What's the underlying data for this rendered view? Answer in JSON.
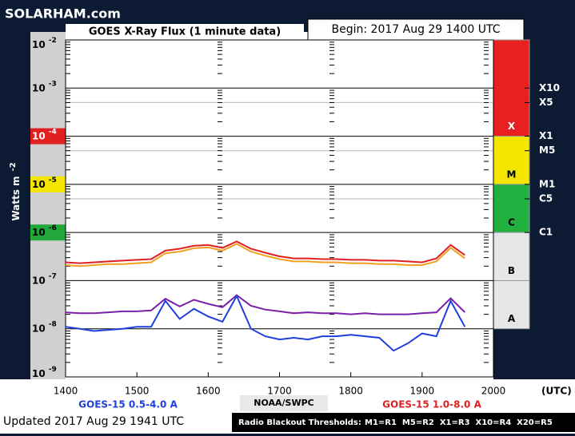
{
  "chart_data": {
    "type": "line",
    "site": "SOLARHAM.com",
    "title": "GOES X-Ray Flux (1 minute data)",
    "begin": "Begin: 2017 Aug 29 1400 UTC",
    "ylabel": "Watts m",
    "ylabel_exp": "-2",
    "x_unit": "(UTC)",
    "credit": "NOAA/SWPC",
    "updated": "Updated 2017 Aug 29 1941 UTC",
    "thresholds_title": "Radio Blackout Thresholds:",
    "thresholds_text": "M1=R1  M5=R2  X1=R3  X10=R4  X20=R5",
    "ylog": true,
    "ylim": [
      1e-09,
      0.01
    ],
    "yticks": [
      {
        "value": 0.01,
        "label": "10",
        "exp": "-2"
      },
      {
        "value": 0.001,
        "label": "10",
        "exp": "-3"
      },
      {
        "value": 0.0001,
        "label": "10",
        "exp": "-4",
        "color": "#e02020"
      },
      {
        "value": 1e-05,
        "label": "10",
        "exp": "-5",
        "color": "#f5e600"
      },
      {
        "value": 1e-06,
        "label": "10",
        "exp": "-6",
        "color": "#22a83a"
      },
      {
        "value": 1e-07,
        "label": "10",
        "exp": "-7"
      },
      {
        "value": 1e-08,
        "label": "10",
        "exp": "-8"
      },
      {
        "value": 1e-09,
        "label": "10",
        "exp": "-9"
      }
    ],
    "xlim": [
      1400,
      2000
    ],
    "xticks": [
      1400,
      1500,
      1600,
      1700,
      1800,
      1900,
      2000
    ],
    "x": [
      1400,
      1420,
      1440,
      1460,
      1480,
      1500,
      1520,
      1540,
      1560,
      1580,
      1600,
      1620,
      1640,
      1660,
      1680,
      1700,
      1720,
      1740,
      1760,
      1780,
      1800,
      1820,
      1840,
      1860,
      1880,
      1900,
      1920,
      1940,
      1960
    ],
    "classes": [
      {
        "label": "X",
        "from": 0.0001,
        "to": 0.01,
        "color": "#e82020"
      },
      {
        "label": "M",
        "from": 1e-05,
        "to": 0.0001,
        "color": "#f5e600"
      },
      {
        "label": "C",
        "from": 1e-06,
        "to": 1e-05,
        "color": "#22b040"
      },
      {
        "label": "B",
        "from": 1e-07,
        "to": 1e-06,
        "color": "#e6e6e6"
      },
      {
        "label": "A",
        "from": 1e-08,
        "to": 1e-07,
        "color": "#e6e6e6"
      }
    ],
    "levels": [
      {
        "value": 0.001,
        "label": "X10"
      },
      {
        "value": 0.0005,
        "label": "X5",
        "grid": true
      },
      {
        "value": 0.0001,
        "label": "X1"
      },
      {
        "value": 5e-05,
        "label": "M5",
        "grid": true
      },
      {
        "value": 1e-05,
        "label": "M1"
      },
      {
        "value": 5e-06,
        "label": "C5",
        "grid": true
      },
      {
        "value": 1e-06,
        "label": "C1"
      }
    ],
    "series": [
      {
        "name": "GOES-15 0.5-4.0 A",
        "color": "#1f3fe0",
        "values": [
          1.1e-08,
          1e-08,
          9e-09,
          9.5e-09,
          1e-08,
          1.1e-08,
          1.1e-08,
          3.8e-08,
          1.6e-08,
          2.6e-08,
          1.8e-08,
          1.4e-08,
          4.8e-08,
          1e-08,
          7e-09,
          6e-09,
          6.5e-09,
          6e-09,
          7e-09,
          7e-09,
          7.5e-09,
          7e-09,
          6.5e-09,
          3.5e-09,
          5e-09,
          8e-09,
          7e-09,
          3.8e-08,
          1.1e-08
        ]
      },
      {
        "name": "GOES-15 1.0-8.0 A",
        "color": "#e02020",
        "values": [
          2.4e-07,
          2.3e-07,
          2.4e-07,
          2.5e-07,
          2.6e-07,
          2.7e-07,
          2.8e-07,
          4.2e-07,
          4.6e-07,
          5.3e-07,
          5.5e-07,
          4.8e-07,
          6.5e-07,
          4.6e-07,
          3.8e-07,
          3.2e-07,
          2.9e-07,
          2.9e-07,
          2.8e-07,
          2.8e-07,
          2.7e-07,
          2.7e-07,
          2.6e-07,
          2.6e-07,
          2.5e-07,
          2.4e-07,
          2.9e-07,
          5.5e-07,
          3.4e-07
        ]
      },
      {
        "color": "#f0a020",
        "values": [
          2.1e-07,
          2e-07,
          2.1e-07,
          2.2e-07,
          2.2e-07,
          2.3e-07,
          2.4e-07,
          3.7e-07,
          4e-07,
          4.7e-07,
          4.9e-07,
          4.2e-07,
          5.8e-07,
          4e-07,
          3.3e-07,
          2.8e-07,
          2.5e-07,
          2.5e-07,
          2.4e-07,
          2.4e-07,
          2.3e-07,
          2.3e-07,
          2.2e-07,
          2.2e-07,
          2.1e-07,
          2.1e-07,
          2.5e-07,
          4.8e-07,
          2.9e-07
        ]
      },
      {
        "color": "#7a1fa8",
        "values": [
          2.2e-08,
          2.1e-08,
          2.1e-08,
          2.2e-08,
          2.3e-08,
          2.3e-08,
          2.4e-08,
          4.2e-08,
          2.9e-08,
          4e-08,
          3.3e-08,
          2.8e-08,
          5e-08,
          3e-08,
          2.5e-08,
          2.3e-08,
          2.1e-08,
          2.2e-08,
          2.1e-08,
          2.1e-08,
          2e-08,
          2.1e-08,
          2e-08,
          2e-08,
          2e-08,
          2.1e-08,
          2.2e-08,
          4.3e-08,
          2.2e-08
        ]
      }
    ]
  }
}
